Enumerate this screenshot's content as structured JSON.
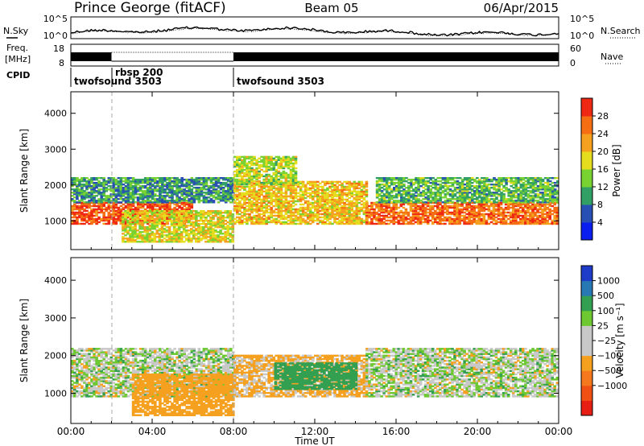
{
  "header": {
    "station": "Prince George (fitACF)",
    "beam": "Beam 05",
    "date": "06/Apr/2015"
  },
  "labels": {
    "nsky": "N.Sky",
    "nsearch": "N.Search",
    "freq_line1": "Freq.",
    "freq_line2": "[MHz]",
    "nave": "Nave",
    "cpid": "CPID",
    "power_label": "Power [dB]",
    "velocity_label": "Velocity [m s⁻¹]",
    "time_label": "Time UT",
    "range_label": "Slant Range [km]"
  },
  "noise_panel": {
    "left_ticks": [
      "10^5",
      "10^0"
    ],
    "right_ticks": [
      "10^5",
      "10^0"
    ]
  },
  "freq_panel": {
    "left_ticks": [
      "18",
      "8"
    ],
    "right_ticks": [
      "60",
      "0"
    ]
  },
  "cpid": [
    {
      "name": "twofsound 3503",
      "start_hour": 0
    },
    {
      "name": "rbsp 200",
      "start_hour": 2
    },
    {
      "name": "twofsound 3503",
      "start_hour": 8
    }
  ],
  "power_scale": {
    "ticks": [
      "4",
      "8",
      "12",
      "16",
      "20",
      "24",
      "28"
    ],
    "colors": [
      "#0a1ef0",
      "#2850b4",
      "#32a064",
      "#78d232",
      "#e6dc1e",
      "#f5a01e",
      "#f56e14",
      "#ef2814"
    ]
  },
  "velocity_scale": {
    "ticks": [
      "1000",
      "500",
      "100",
      "25",
      "−25",
      "−100",
      "−500",
      "−1000"
    ],
    "colors": [
      "#1e3cc8",
      "#2878b4",
      "#32a050",
      "#6ec832",
      "#c8c8c8",
      "#c8c8c8",
      "#f5a01e",
      "#f5781e",
      "#f05014",
      "#e61e14"
    ]
  },
  "chart_data": [
    {
      "type": "heatmap",
      "name": "power",
      "ylabel": "Slant Range [km]",
      "zlabel": "Power [dB]",
      "x_ticks": [
        "00:00",
        "04:00",
        "08:00",
        "12:00",
        "16:00",
        "20:00",
        "00:00"
      ],
      "y_ticks": [
        "1000",
        "2000",
        "3000",
        "4000"
      ],
      "xlim": [
        0,
        24
      ],
      "ylim": [
        200,
        4600
      ],
      "zlim": [
        0,
        32
      ],
      "bands": [
        {
          "t0": 0,
          "t1": 6,
          "r0": 900,
          "r1": 1500,
          "value": 28
        },
        {
          "t0": 0,
          "t1": 8,
          "r0": 1500,
          "r1": 2200,
          "value": 10
        },
        {
          "t0": 2.5,
          "t1": 8,
          "r0": 400,
          "r1": 1300,
          "value": 18
        },
        {
          "t0": 8,
          "t1": 14.5,
          "r0": 900,
          "r1": 2100,
          "value": 20
        },
        {
          "t0": 8,
          "t1": 11,
          "r0": 2000,
          "r1": 2800,
          "value": 16
        },
        {
          "t0": 14.5,
          "t1": 24,
          "r0": 900,
          "r1": 1500,
          "value": 26
        },
        {
          "t0": 15,
          "t1": 24,
          "r0": 1500,
          "r1": 2200,
          "value": 12
        }
      ]
    },
    {
      "type": "heatmap",
      "name": "velocity",
      "ylabel": "Slant Range [km]",
      "zlabel": "Velocity [m s⁻¹]",
      "x_ticks": [
        "00:00",
        "04:00",
        "08:00",
        "12:00",
        "16:00",
        "20:00",
        "00:00"
      ],
      "y_ticks": [
        "1000",
        "2000",
        "3000",
        "4000"
      ],
      "xlim": [
        0,
        24
      ],
      "ylim": [
        200,
        4600
      ],
      "zlim": [
        -1000,
        1000
      ],
      "bands": [
        {
          "t0": 0,
          "t1": 8,
          "r0": 900,
          "r1": 2200,
          "value": 0
        },
        {
          "t0": 3,
          "t1": 8,
          "r0": 400,
          "r1": 1500,
          "value": -300
        },
        {
          "t0": 8,
          "t1": 14.5,
          "r0": 900,
          "r1": 2000,
          "value": -150
        },
        {
          "t0": 10,
          "t1": 14,
          "r0": 1100,
          "r1": 1800,
          "value": 300
        },
        {
          "t0": 14.5,
          "t1": 24,
          "r0": 900,
          "r1": 2200,
          "value": 0
        }
      ]
    }
  ]
}
